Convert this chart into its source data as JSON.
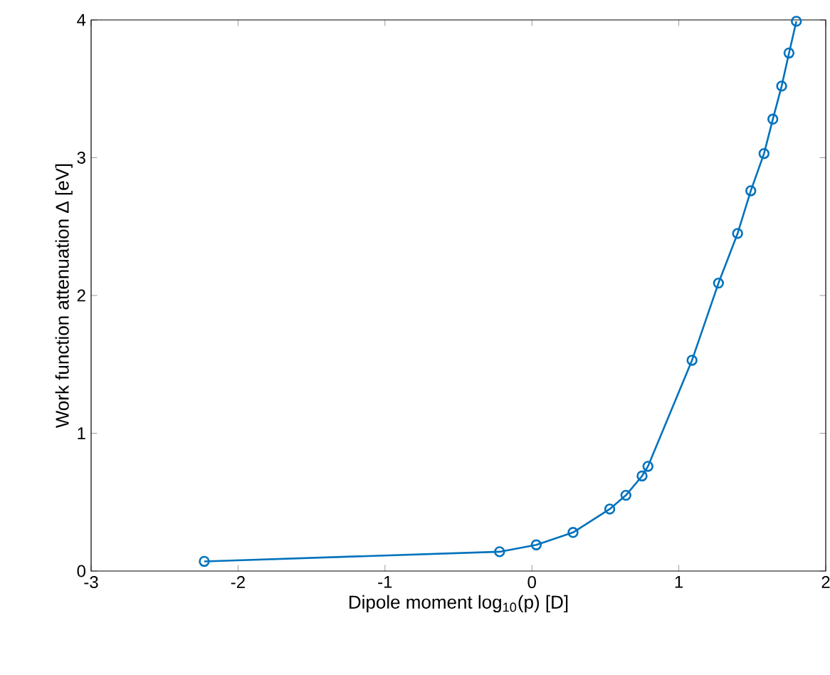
{
  "chart_data": {
    "type": "line",
    "xlabel": "Dipole moment log$_{10}$(p) [D]",
    "ylabel": "Work function attenuation Δ [eV]",
    "xlim": [
      -3,
      2
    ],
    "ylim": [
      0,
      4
    ],
    "xticks": [
      -3,
      -2,
      -1,
      0,
      1,
      2
    ],
    "yticks": [
      0,
      1,
      2,
      3,
      4
    ],
    "grid": false,
    "marker": "circle",
    "line_style": "solid",
    "series": [
      {
        "color": "#0072bd",
        "x": [
          -2.23,
          -0.22,
          0.03,
          0.28,
          0.53,
          0.64,
          0.75,
          0.79,
          1.09,
          1.27,
          1.4,
          1.49,
          1.58,
          1.64,
          1.7,
          1.75,
          1.8
        ],
        "values": [
          0.07,
          0.14,
          0.19,
          0.28,
          0.45,
          0.55,
          0.69,
          0.76,
          1.53,
          2.09,
          2.45,
          2.76,
          3.03,
          3.28,
          3.52,
          3.76,
          3.99
        ]
      }
    ]
  }
}
